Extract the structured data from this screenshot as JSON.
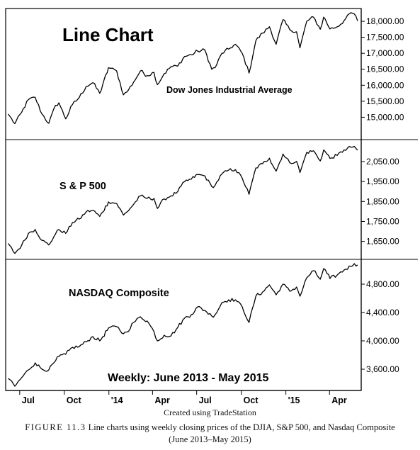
{
  "chart_title": "Line Chart",
  "period_label": "Weekly: June 2013 - May 2015",
  "credit": "Created using TradeStation",
  "caption": {
    "figure_label": "FIGURE 11.3",
    "text": "Line charts using weekly closing prices of the DJIA, S&P 500, and Nasdaq Composite",
    "text2": "(June 2013–May 2015)"
  },
  "x_axis": {
    "labels": [
      {
        "label": "Jul",
        "date": "2013-07"
      },
      {
        "label": "Oct",
        "date": "2013-10"
      },
      {
        "label": "'14",
        "date": "2014-01"
      },
      {
        "label": "Apr",
        "date": "2014-04"
      },
      {
        "label": "Jul",
        "date": "2014-07"
      },
      {
        "label": "Oct",
        "date": "2014-10"
      },
      {
        "label": "'15",
        "date": "2015-01"
      },
      {
        "label": "Apr",
        "date": "2015-04"
      }
    ]
  },
  "chart_data": [
    {
      "type": "line",
      "title": "Dow Jones Industrial Average",
      "ylim": [
        14300,
        18400
      ],
      "yticks": [
        {
          "value": 15000,
          "label": "15,000.00"
        },
        {
          "value": 15500,
          "label": "15,500.00"
        },
        {
          "value": 16000,
          "label": "16,000.00"
        },
        {
          "value": 16500,
          "label": "16,500.00"
        },
        {
          "value": 17000,
          "label": "17,000.00"
        },
        {
          "value": 17500,
          "label": "17,500.00"
        },
        {
          "value": 18000,
          "label": "18,000.00"
        }
      ],
      "points": [
        [
          "2013-06-07",
          15100
        ],
        [
          "2013-06-21",
          14800
        ],
        [
          "2013-07-05",
          15150
        ],
        [
          "2013-07-19",
          15550
        ],
        [
          "2013-08-02",
          15620
        ],
        [
          "2013-08-16",
          15100
        ],
        [
          "2013-08-30",
          14810
        ],
        [
          "2013-09-13",
          15370
        ],
        [
          "2013-09-20",
          15450
        ],
        [
          "2013-10-04",
          14950
        ],
        [
          "2013-10-18",
          15400
        ],
        [
          "2013-11-01",
          15620
        ],
        [
          "2013-11-15",
          15960
        ],
        [
          "2013-11-29",
          16080
        ],
        [
          "2013-12-13",
          15750
        ],
        [
          "2013-12-31",
          16550
        ],
        [
          "2014-01-17",
          16450
        ],
        [
          "2014-01-31",
          15700
        ],
        [
          "2014-02-07",
          15790
        ],
        [
          "2014-02-21",
          16100
        ],
        [
          "2014-03-07",
          16450
        ],
        [
          "2014-03-21",
          16300
        ],
        [
          "2014-04-04",
          16400
        ],
        [
          "2014-04-11",
          16020
        ],
        [
          "2014-04-25",
          16360
        ],
        [
          "2014-05-09",
          16580
        ],
        [
          "2014-05-23",
          16600
        ],
        [
          "2014-06-06",
          16900
        ],
        [
          "2014-06-20",
          16950
        ],
        [
          "2014-07-03",
          17070
        ],
        [
          "2014-07-18",
          17100
        ],
        [
          "2014-08-01",
          16500
        ],
        [
          "2014-08-08",
          16550
        ],
        [
          "2014-08-22",
          17000
        ],
        [
          "2014-09-05",
          17130
        ],
        [
          "2014-09-19",
          17280
        ],
        [
          "2014-10-03",
          17000
        ],
        [
          "2014-10-17",
          16380
        ],
        [
          "2014-10-31",
          17390
        ],
        [
          "2014-11-14",
          17630
        ],
        [
          "2014-11-28",
          17830
        ],
        [
          "2014-12-12",
          17280
        ],
        [
          "2014-12-26",
          18050
        ],
        [
          "2015-01-09",
          17740
        ],
        [
          "2015-01-23",
          17670
        ],
        [
          "2015-01-30",
          17170
        ],
        [
          "2015-02-13",
          18000
        ],
        [
          "2015-02-27",
          18130
        ],
        [
          "2015-03-13",
          17750
        ],
        [
          "2015-03-20",
          18130
        ],
        [
          "2015-04-02",
          17760
        ],
        [
          "2015-04-17",
          17830
        ],
        [
          "2015-05-01",
          18020
        ],
        [
          "2015-05-15",
          18270
        ],
        [
          "2015-05-22",
          18230
        ],
        [
          "2015-05-29",
          18010
        ]
      ]
    },
    {
      "type": "line",
      "title": "S & P 500",
      "ylim": [
        1560,
        2160
      ],
      "yticks": [
        {
          "value": 1650,
          "label": "1,650.00"
        },
        {
          "value": 1750,
          "label": "1,750.00"
        },
        {
          "value": 1850,
          "label": "1,850.00"
        },
        {
          "value": 1950,
          "label": "1,950.00"
        },
        {
          "value": 2050,
          "label": "2,050.00"
        }
      ],
      "points": [
        [
          "2013-06-07",
          1640
        ],
        [
          "2013-06-21",
          1590
        ],
        [
          "2013-07-05",
          1630
        ],
        [
          "2013-07-19",
          1690
        ],
        [
          "2013-08-02",
          1710
        ],
        [
          "2013-08-16",
          1655
        ],
        [
          "2013-08-30",
          1632
        ],
        [
          "2013-09-13",
          1688
        ],
        [
          "2013-09-20",
          1710
        ],
        [
          "2013-10-04",
          1690
        ],
        [
          "2013-10-18",
          1745
        ],
        [
          "2013-11-01",
          1762
        ],
        [
          "2013-11-15",
          1798
        ],
        [
          "2013-11-29",
          1806
        ],
        [
          "2013-12-13",
          1775
        ],
        [
          "2013-12-31",
          1848
        ],
        [
          "2014-01-17",
          1840
        ],
        [
          "2014-01-31",
          1782
        ],
        [
          "2014-02-07",
          1797
        ],
        [
          "2014-02-21",
          1836
        ],
        [
          "2014-03-07",
          1878
        ],
        [
          "2014-03-21",
          1866
        ],
        [
          "2014-04-04",
          1865
        ],
        [
          "2014-04-11",
          1815
        ],
        [
          "2014-04-25",
          1863
        ],
        [
          "2014-05-09",
          1878
        ],
        [
          "2014-05-23",
          1900
        ],
        [
          "2014-06-06",
          1949
        ],
        [
          "2014-06-20",
          1962
        ],
        [
          "2014-07-03",
          1985
        ],
        [
          "2014-07-18",
          1978
        ],
        [
          "2014-08-01",
          1925
        ],
        [
          "2014-08-08",
          1931
        ],
        [
          "2014-08-22",
          1988
        ],
        [
          "2014-09-05",
          2007
        ],
        [
          "2014-09-19",
          2010
        ],
        [
          "2014-10-03",
          1967
        ],
        [
          "2014-10-17",
          1886
        ],
        [
          "2014-10-31",
          2018
        ],
        [
          "2014-11-14",
          2040
        ],
        [
          "2014-11-28",
          2067
        ],
        [
          "2014-12-12",
          2002
        ],
        [
          "2014-12-26",
          2088
        ],
        [
          "2015-01-09",
          2044
        ],
        [
          "2015-01-23",
          2051
        ],
        [
          "2015-01-30",
          1995
        ],
        [
          "2015-02-13",
          2096
        ],
        [
          "2015-02-27",
          2104
        ],
        [
          "2015-03-13",
          2053
        ],
        [
          "2015-03-20",
          2108
        ],
        [
          "2015-04-02",
          2066
        ],
        [
          "2015-04-17",
          2081
        ],
        [
          "2015-05-01",
          2108
        ],
        [
          "2015-05-15",
          2122
        ],
        [
          "2015-05-22",
          2126
        ],
        [
          "2015-05-29",
          2107
        ]
      ]
    },
    {
      "type": "line",
      "title": "NASDAQ Composite",
      "ylim": [
        3300,
        5150
      ],
      "yticks": [
        {
          "value": 3600,
          "label": "3,600.00"
        },
        {
          "value": 4000,
          "label": "4,000.00"
        },
        {
          "value": 4400,
          "label": "4,400.00"
        },
        {
          "value": 4800,
          "label": "4,800.00"
        }
      ],
      "points": [
        [
          "2013-06-07",
          3470
        ],
        [
          "2013-06-21",
          3360
        ],
        [
          "2013-07-05",
          3480
        ],
        [
          "2013-07-19",
          3590
        ],
        [
          "2013-08-02",
          3690
        ],
        [
          "2013-08-16",
          3600
        ],
        [
          "2013-08-30",
          3590
        ],
        [
          "2013-09-13",
          3720
        ],
        [
          "2013-09-20",
          3780
        ],
        [
          "2013-10-04",
          3810
        ],
        [
          "2013-10-18",
          3910
        ],
        [
          "2013-11-01",
          3920
        ],
        [
          "2013-11-15",
          3985
        ],
        [
          "2013-11-29",
          4060
        ],
        [
          "2013-12-13",
          4000
        ],
        [
          "2013-12-31",
          4180
        ],
        [
          "2014-01-17",
          4200
        ],
        [
          "2014-01-31",
          4100
        ],
        [
          "2014-02-07",
          4125
        ],
        [
          "2014-02-21",
          4260
        ],
        [
          "2014-03-07",
          4340
        ],
        [
          "2014-03-21",
          4280
        ],
        [
          "2014-04-04",
          4130
        ],
        [
          "2014-04-11",
          4000
        ],
        [
          "2014-04-25",
          4080
        ],
        [
          "2014-05-09",
          4070
        ],
        [
          "2014-05-23",
          4190
        ],
        [
          "2014-06-06",
          4320
        ],
        [
          "2014-06-20",
          4370
        ],
        [
          "2014-07-03",
          4480
        ],
        [
          "2014-07-18",
          4430
        ],
        [
          "2014-08-01",
          4350
        ],
        [
          "2014-08-08",
          4370
        ],
        [
          "2014-08-22",
          4540
        ],
        [
          "2014-09-05",
          4580
        ],
        [
          "2014-09-19",
          4580
        ],
        [
          "2014-10-03",
          4480
        ],
        [
          "2014-10-17",
          4260
        ],
        [
          "2014-10-31",
          4630
        ],
        [
          "2014-11-14",
          4690
        ],
        [
          "2014-11-28",
          4790
        ],
        [
          "2014-12-12",
          4650
        ],
        [
          "2014-12-26",
          4800
        ],
        [
          "2015-01-09",
          4700
        ],
        [
          "2015-01-23",
          4760
        ],
        [
          "2015-01-30",
          4630
        ],
        [
          "2015-02-13",
          4890
        ],
        [
          "2015-02-27",
          4990
        ],
        [
          "2015-03-13",
          4870
        ],
        [
          "2015-03-20",
          5020
        ],
        [
          "2015-04-02",
          4880
        ],
        [
          "2015-04-17",
          4930
        ],
        [
          "2015-05-01",
          5000
        ],
        [
          "2015-05-15",
          5050
        ],
        [
          "2015-05-22",
          5090
        ],
        [
          "2015-05-29",
          5070
        ]
      ]
    }
  ]
}
